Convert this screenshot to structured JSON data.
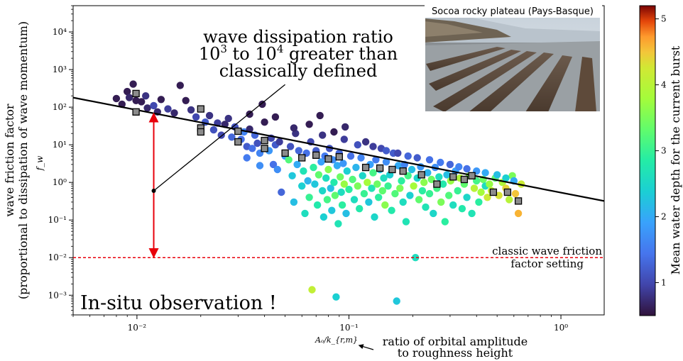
{
  "chart_data": {
    "type": "scatter",
    "x_scale": "log",
    "y_scale": "log",
    "xlim": [
      0.005,
      1.6
    ],
    "ylim": [
      0.0003,
      50000
    ],
    "grid": false,
    "xlabel": "A_o/k_{r,m}",
    "xlabel_display": "Aₒ/k_{r,m}",
    "ylabel": "f_w",
    "ylabel_outer_line1": "wave friction factor",
    "ylabel_outer_line2": "(proportional to dissipation of wave momentum)",
    "x_ticks": [
      {
        "value": 0.01,
        "label": "10⁻²"
      },
      {
        "value": 0.1,
        "label": "10⁻¹"
      },
      {
        "value": 1,
        "label": "10⁰"
      }
    ],
    "y_ticks": [
      {
        "value": 0.001,
        "label": "10⁻³"
      },
      {
        "value": 0.01,
        "label": "10⁻²"
      },
      {
        "value": 0.1,
        "label": "10⁻¹"
      },
      {
        "value": 1,
        "label": "10⁰"
      },
      {
        "value": 10,
        "label": "10¹"
      },
      {
        "value": 100,
        "label": "10²"
      },
      {
        "value": 1000,
        "label": "10³"
      },
      {
        "value": 10000,
        "label": "10⁴"
      }
    ],
    "colorbar": {
      "label": "Mean water depth for the current burst",
      "min": 0.5,
      "max": 5.2,
      "ticks": [
        {
          "value": 1,
          "label": "1"
        },
        {
          "value": 2,
          "label": "2"
        },
        {
          "value": 3,
          "label": "3"
        },
        {
          "value": 4,
          "label": "4"
        },
        {
          "value": 5,
          "label": "5"
        }
      ],
      "colormap": "turbo"
    },
    "fit_line": {
      "points": [
        [
          0.005,
          180
        ],
        [
          1.6,
          0.32
        ]
      ],
      "color": "#000000"
    },
    "classic_setting": {
      "value": 0.01,
      "label_line1": "classic wave friction",
      "label_line2": "factor setting",
      "color": "#e8000b"
    },
    "binned_means": [
      [
        0.0099,
        230
      ],
      [
        0.0099,
        75
      ],
      [
        0.02,
        90
      ],
      [
        0.02,
        28
      ],
      [
        0.02,
        22
      ],
      [
        0.03,
        23
      ],
      [
        0.03,
        12
      ],
      [
        0.04,
        13
      ],
      [
        0.04,
        8
      ],
      [
        0.05,
        6.0
      ],
      [
        0.06,
        4.5
      ],
      [
        0.07,
        5.3
      ],
      [
        0.08,
        4.2
      ],
      [
        0.09,
        4.8
      ],
      [
        0.12,
        2.5
      ],
      [
        0.14,
        2.4
      ],
      [
        0.16,
        2.2
      ],
      [
        0.18,
        2.0
      ],
      [
        0.22,
        1.6
      ],
      [
        0.26,
        0.9
      ],
      [
        0.31,
        1.4
      ],
      [
        0.35,
        1.2
      ],
      [
        0.38,
        1.5
      ],
      [
        0.48,
        0.55
      ],
      [
        0.56,
        0.55
      ],
      [
        0.63,
        0.32
      ]
    ],
    "scatter_points": [
      [
        0.008,
        170,
        0.6
      ],
      [
        0.0085,
        120,
        0.6
      ],
      [
        0.009,
        260,
        0.6
      ],
      [
        0.0092,
        180,
        0.7
      ],
      [
        0.0096,
        410,
        0.6
      ],
      [
        0.0099,
        150,
        0.6
      ],
      [
        0.0105,
        140,
        0.6
      ],
      [
        0.011,
        200,
        0.8
      ],
      [
        0.0112,
        95,
        0.7
      ],
      [
        0.012,
        110,
        1.0
      ],
      [
        0.0125,
        75,
        0.7
      ],
      [
        0.013,
        160,
        0.6
      ],
      [
        0.014,
        90,
        0.9
      ],
      [
        0.015,
        70,
        0.7
      ],
      [
        0.016,
        380,
        0.6
      ],
      [
        0.017,
        150,
        0.6
      ],
      [
        0.018,
        85,
        0.8
      ],
      [
        0.019,
        55,
        1.0
      ],
      [
        0.021,
        40,
        1.2
      ],
      [
        0.022,
        60,
        0.8
      ],
      [
        0.023,
        25,
        1.1
      ],
      [
        0.024,
        38,
        0.9
      ],
      [
        0.025,
        18,
        1.0
      ],
      [
        0.026,
        35,
        0.7
      ],
      [
        0.027,
        50,
        0.8
      ],
      [
        0.028,
        16,
        1.3
      ],
      [
        0.029,
        30,
        1.1
      ],
      [
        0.031,
        14,
        1.4
      ],
      [
        0.032,
        22,
        1.6
      ],
      [
        0.033,
        9,
        1.2
      ],
      [
        0.034,
        26,
        0.7
      ],
      [
        0.035,
        8,
        1.4
      ],
      [
        0.036,
        18,
        1.3
      ],
      [
        0.037,
        11,
        1.1
      ],
      [
        0.038,
        6,
        1.6
      ],
      [
        0.039,
        120,
        0.6
      ],
      [
        0.04,
        40,
        0.6
      ],
      [
        0.042,
        7,
        1.8
      ],
      [
        0.043,
        15,
        1.0
      ],
      [
        0.044,
        3,
        1.4
      ],
      [
        0.045,
        10,
        1.2
      ],
      [
        0.046,
        2.2,
        1.7
      ],
      [
        0.047,
        12,
        0.9
      ],
      [
        0.048,
        0.55,
        1.3
      ],
      [
        0.05,
        5,
        1.9
      ],
      [
        0.052,
        4,
        3.2
      ],
      [
        0.053,
        9,
        1.1
      ],
      [
        0.054,
        1.5,
        2.3
      ],
      [
        0.055,
        0.3,
        2.2
      ],
      [
        0.056,
        20,
        0.8
      ],
      [
        0.057,
        3,
        2.0
      ],
      [
        0.058,
        7,
        1.3
      ],
      [
        0.06,
        0.8,
        2.4
      ],
      [
        0.061,
        2,
        2.7
      ],
      [
        0.062,
        0.15,
        2.6
      ],
      [
        0.063,
        6,
        1.4
      ],
      [
        0.064,
        1.1,
        2.1
      ],
      [
        0.065,
        0.4,
        3.0
      ],
      [
        0.066,
        12,
        1.0
      ],
      [
        0.067,
        0.0014,
        4.1
      ],
      [
        0.068,
        2.5,
        2.9
      ],
      [
        0.069,
        0.9,
        2.3
      ],
      [
        0.07,
        7,
        1.2
      ],
      [
        0.071,
        0.25,
        2.8
      ],
      [
        0.072,
        1.6,
        3.3
      ],
      [
        0.073,
        60,
        0.6
      ],
      [
        0.074,
        3.5,
        1.9
      ],
      [
        0.075,
        0.6,
        2.5
      ],
      [
        0.076,
        0.12,
        2.4
      ],
      [
        0.077,
        5,
        1.5
      ],
      [
        0.078,
        1.3,
        2.6
      ],
      [
        0.079,
        0.35,
        3.1
      ],
      [
        0.08,
        2.2,
        3.6
      ],
      [
        0.081,
        8,
        1.1
      ],
      [
        0.082,
        0.7,
        2.2
      ],
      [
        0.083,
        0.18,
        2.3
      ],
      [
        0.084,
        4,
        1.7
      ],
      [
        0.085,
        1.0,
        2.8
      ],
      [
        0.086,
        0.45,
        3.3
      ],
      [
        0.087,
        0.0009,
        2.4
      ],
      [
        0.088,
        2.8,
        2.0
      ],
      [
        0.089,
        0.08,
        2.7
      ],
      [
        0.09,
        6,
        1.3
      ],
      [
        0.091,
        1.4,
        3.4
      ],
      [
        0.092,
        0.55,
        2.6
      ],
      [
        0.093,
        0.25,
        2.9
      ],
      [
        0.094,
        3.2,
        1.8
      ],
      [
        0.095,
        0.9,
        3.7
      ],
      [
        0.096,
        30,
        0.7
      ],
      [
        0.097,
        0.15,
        2.2
      ],
      [
        0.098,
        2.0,
        2.4
      ],
      [
        0.1,
        0.65,
        2.9
      ],
      [
        0.102,
        5,
        1.4
      ],
      [
        0.104,
        1.2,
        3.2
      ],
      [
        0.106,
        0.35,
        2.6
      ],
      [
        0.108,
        2.5,
        2.1
      ],
      [
        0.11,
        0.8,
        3.5
      ],
      [
        0.112,
        0.2,
        2.8
      ],
      [
        0.114,
        4.5,
        1.6
      ],
      [
        0.116,
        1.5,
        2.5
      ],
      [
        0.118,
        0.5,
        3.0
      ],
      [
        0.12,
        12,
        0.8
      ],
      [
        0.122,
        1.0,
        3.8
      ],
      [
        0.124,
        0.3,
        2.3
      ],
      [
        0.126,
        3,
        1.9
      ],
      [
        0.128,
        0.7,
        2.7
      ],
      [
        0.13,
        1.8,
        3.1
      ],
      [
        0.132,
        0.12,
        2.5
      ],
      [
        0.134,
        4,
        1.5
      ],
      [
        0.136,
        0.9,
        3.4
      ],
      [
        0.138,
        0.4,
        2.9
      ],
      [
        0.14,
        2.2,
        2.2
      ],
      [
        0.142,
        8,
        1.0
      ],
      [
        0.144,
        0.6,
        3.3
      ],
      [
        0.146,
        1.3,
        2.6
      ],
      [
        0.148,
        0.25,
        3.6
      ],
      [
        0.15,
        3.5,
        1.7
      ],
      [
        0.153,
        0.8,
        3.0
      ],
      [
        0.156,
        1.6,
        2.4
      ],
      [
        0.159,
        0.18,
        2.8
      ],
      [
        0.162,
        6,
        1.2
      ],
      [
        0.165,
        0.5,
        3.2
      ],
      [
        0.168,
        0.0007,
        2.3
      ],
      [
        0.171,
        2.8,
        2.0
      ],
      [
        0.174,
        0.7,
        3.5
      ],
      [
        0.177,
        1.1,
        2.9
      ],
      [
        0.18,
        0.3,
        2.6
      ],
      [
        0.183,
        3,
        1.6
      ],
      [
        0.186,
        0.09,
        2.7
      ],
      [
        0.19,
        1.5,
        3.1
      ],
      [
        0.194,
        0.45,
        2.4
      ],
      [
        0.198,
        2.2,
        2.2
      ],
      [
        0.202,
        0.8,
        3.8
      ],
      [
        0.206,
        0.01,
        2.6
      ],
      [
        0.21,
        1.3,
        2.5
      ],
      [
        0.214,
        0.35,
        3.3
      ],
      [
        0.218,
        2.6,
        1.8
      ],
      [
        0.222,
        0.6,
        2.9
      ],
      [
        0.226,
        1.0,
        3.6
      ],
      [
        0.23,
        0.22,
        2.7
      ],
      [
        0.235,
        1.8,
        2.1
      ],
      [
        0.24,
        0.5,
        3.0
      ],
      [
        0.245,
        1.2,
        3.4
      ],
      [
        0.25,
        0.15,
        2.5
      ],
      [
        0.255,
        2.5,
        1.7
      ],
      [
        0.26,
        0.7,
        3.1
      ],
      [
        0.266,
        1.4,
        2.6
      ],
      [
        0.272,
        0.3,
        3.5
      ],
      [
        0.278,
        0.9,
        2.8
      ],
      [
        0.284,
        0.09,
        2.9
      ],
      [
        0.29,
        1.6,
        2.2
      ],
      [
        0.296,
        0.45,
        3.2
      ],
      [
        0.302,
        1.1,
        3.7
      ],
      [
        0.31,
        0.25,
        2.6
      ],
      [
        0.318,
        2.0,
        1.9
      ],
      [
        0.326,
        0.6,
        3.0
      ],
      [
        0.334,
        1.3,
        3.9
      ],
      [
        0.342,
        0.2,
        2.8
      ],
      [
        0.35,
        0.9,
        3.3
      ],
      [
        0.36,
        0.4,
        2.5
      ],
      [
        0.37,
        1.5,
        3.6
      ],
      [
        0.38,
        0.15,
        2.7
      ],
      [
        0.39,
        0.7,
        4.0
      ],
      [
        0.4,
        1.1,
        3.1
      ],
      [
        0.41,
        0.3,
        2.9
      ],
      [
        0.42,
        0.55,
        3.8
      ],
      [
        0.43,
        1.2,
        3.4
      ],
      [
        0.44,
        0.8,
        2.6
      ],
      [
        0.45,
        0.4,
        4.2
      ],
      [
        0.46,
        0.9,
        3.7
      ],
      [
        0.47,
        0.6,
        4.1
      ],
      [
        0.49,
        1.3,
        3.3
      ],
      [
        0.51,
        0.45,
        4.3
      ],
      [
        0.53,
        1.0,
        3.9
      ],
      [
        0.55,
        0.7,
        4.4
      ],
      [
        0.57,
        0.35,
        4.0
      ],
      [
        0.59,
        1.5,
        3.5
      ],
      [
        0.61,
        0.5,
        4.5
      ],
      [
        0.63,
        0.15,
        4.6
      ],
      [
        0.65,
        0.9,
        4.2
      ],
      [
        0.034,
        65,
        0.6
      ],
      [
        0.045,
        55,
        0.6
      ],
      [
        0.055,
        28,
        0.7
      ],
      [
        0.065,
        35,
        0.6
      ],
      [
        0.075,
        18,
        0.8
      ],
      [
        0.085,
        22,
        0.6
      ],
      [
        0.095,
        14,
        0.9
      ],
      [
        0.11,
        10,
        1.1
      ],
      [
        0.13,
        9,
        0.9
      ],
      [
        0.15,
        7,
        1.2
      ],
      [
        0.17,
        6,
        1.0
      ],
      [
        0.19,
        5,
        1.3
      ],
      [
        0.21,
        4.5,
        1.2
      ],
      [
        0.24,
        4,
        1.4
      ],
      [
        0.27,
        3.4,
        1.5
      ],
      [
        0.3,
        3,
        1.3
      ],
      [
        0.33,
        2.6,
        1.6
      ],
      [
        0.36,
        2.3,
        1.4
      ],
      [
        0.4,
        2.0,
        1.8
      ],
      [
        0.44,
        1.8,
        2.0
      ],
      [
        0.5,
        1.6,
        2.2
      ],
      [
        0.55,
        1.3,
        2.4
      ],
      [
        0.6,
        1.1,
        2.0
      ],
      [
        0.033,
        4.5,
        1.5
      ],
      [
        0.038,
        2.8,
        1.7
      ]
    ]
  },
  "annotations": {
    "dissipation_line1": "wave dissipation ratio",
    "dissipation_line2_a": "10",
    "dissipation_line2_sup1": "3",
    "dissipation_line2_b": " to 10",
    "dissipation_line2_sup2": "4",
    "dissipation_line2_c": " greater than",
    "dissipation_line3": "classically defined",
    "insitu": "In-situ observation !",
    "xlabel_right_line1": "ratio of orbital amplitude",
    "xlabel_right_line2": "to roughness height",
    "arrow_color": "#e8000b",
    "arrow_x": 0.012,
    "arrow_y_top": 70,
    "arrow_y_bottom": 0.01,
    "pointer_dot": [
      0.012,
      0.6
    ],
    "pointer_end": [
      0.05,
      400
    ]
  },
  "photo": {
    "title": "Socoa rocky plateau (Pays-Basque)"
  }
}
